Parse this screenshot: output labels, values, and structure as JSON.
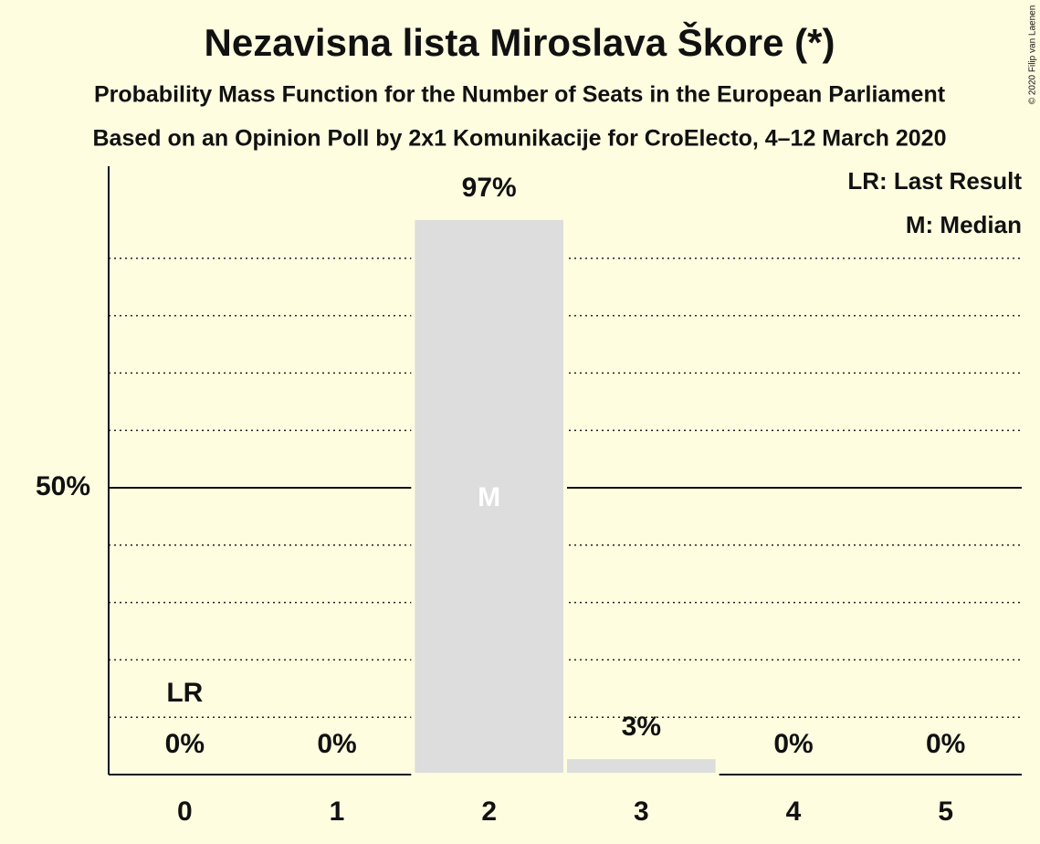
{
  "chart_data": {
    "type": "bar",
    "title": "Nezavisna lista Miroslava Škore (*)",
    "subtitle": "Probability Mass Function for the Number of Seats in the European Parliament",
    "subtitle2": "Based on an Opinion Poll by 2x1 Komunikacije for CroElecto, 4–12 March 2020",
    "copyright": "© 2020 Filip van Laenen",
    "x": [
      0,
      1,
      2,
      3,
      4,
      5
    ],
    "values": [
      0,
      0,
      97,
      3,
      0,
      0
    ],
    "value_labels": [
      "0%",
      "0%",
      "97%",
      "3%",
      "0%",
      "0%"
    ],
    "color": "#dddddd",
    "ylim": [
      0,
      100
    ],
    "yticks": [
      {
        "value": 50,
        "label": "50%"
      }
    ],
    "minor_yticks": [
      10,
      20,
      30,
      40,
      60,
      70,
      80,
      90
    ],
    "grid": true,
    "last_result": {
      "label": "LR",
      "seats": 0
    },
    "median": {
      "label": "M",
      "seats": 2
    },
    "legend": [
      "LR: Last Result",
      "M: Median"
    ],
    "legend_position": "top-right"
  }
}
